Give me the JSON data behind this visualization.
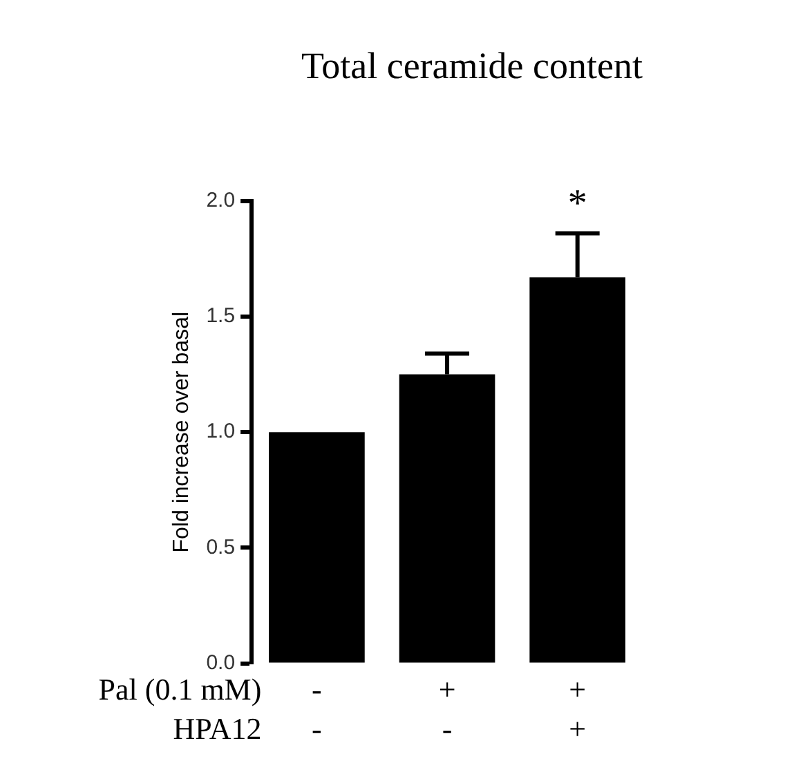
{
  "chart_data": {
    "type": "bar",
    "title": "Total ceramide content",
    "ylabel": "Fold increase over basal",
    "categories": [
      "-\n-",
      "+\n-",
      "+\n+"
    ],
    "values": [
      1.0,
      1.25,
      1.67
    ],
    "errors": [
      null,
      0.09,
      0.19
    ],
    "color": "#000000",
    "ylim": [
      0,
      2
    ],
    "yticks": [
      {
        "value": 0,
        "label": "0.0"
      },
      {
        "value": 0.5,
        "label": "0.5"
      },
      {
        "value": 1,
        "label": "1.0"
      },
      {
        "value": 1.5,
        "label": "1.5"
      },
      {
        "value": 2,
        "label": "2.0"
      }
    ],
    "grid": false,
    "annotations": [
      "*",
      "Pal (0.1 mM)",
      "HPA12"
    ]
  }
}
